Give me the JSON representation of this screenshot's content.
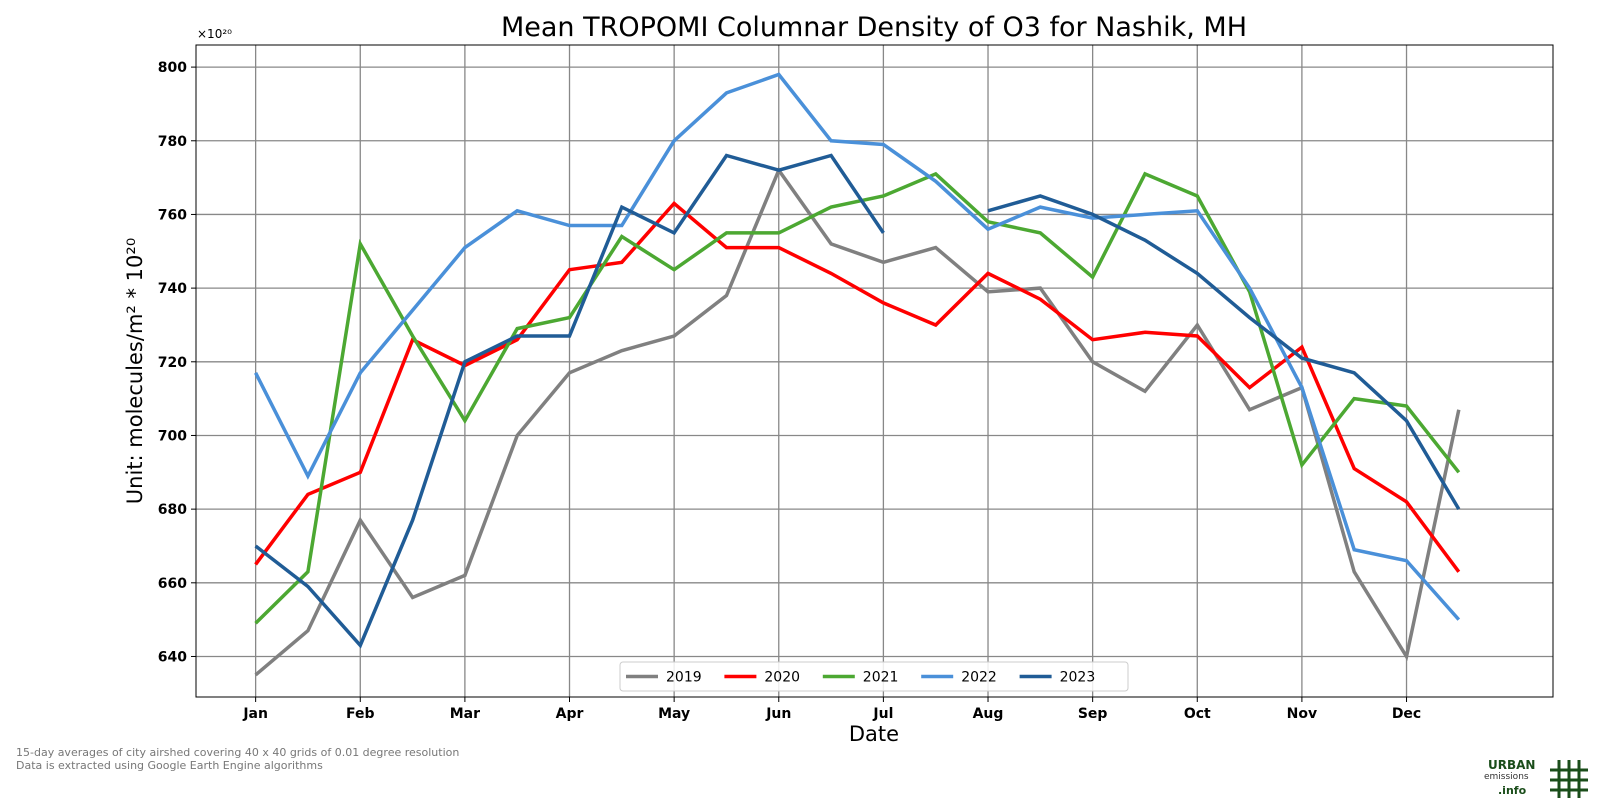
{
  "chart_data": {
    "type": "line",
    "title": "Mean TROPOMI Columnar Density of O3 for Nashik, MH",
    "xlabel": "Date",
    "ylabel": "Unit: molecules/m² * 10²⁰",
    "y_multiplier": "×10²⁰",
    "xticks": [
      "Jan",
      "Feb",
      "Mar",
      "Apr",
      "May",
      "Jun",
      "Jul",
      "Aug",
      "Sep",
      "Oct",
      "Nov",
      "Dec"
    ],
    "yticks": [
      640,
      660,
      680,
      700,
      720,
      740,
      760,
      780,
      800
    ],
    "ylim": [
      629,
      806
    ],
    "xlim": [
      -0.57,
      12.4
    ],
    "grid": true,
    "legend_position": "bottom-center",
    "series": [
      {
        "name": "2019",
        "color": "#808080",
        "x": [
          0,
          0.5,
          1,
          1.5,
          2,
          2.5,
          3,
          3.5,
          4,
          4.5,
          5,
          5.5,
          6,
          6.5,
          7,
          7.5,
          8,
          8.5,
          9,
          9.5,
          10,
          10.5,
          11,
          11.5
        ],
        "values": [
          635,
          647,
          677,
          656,
          662,
          700,
          717,
          723,
          727,
          738,
          772,
          752,
          747,
          751,
          739,
          740,
          720,
          712,
          730,
          707,
          713,
          663,
          640,
          707
        ]
      },
      {
        "name": "2020",
        "color": "#ff0000",
        "x": [
          0,
          0.5,
          1,
          1.5,
          2,
          2.5,
          3,
          3.5,
          4,
          4.5,
          5,
          5.5,
          6,
          6.5,
          7,
          7.5,
          8,
          8.5,
          9,
          9.5,
          10,
          10.5,
          11,
          11.5
        ],
        "values": [
          665,
          684,
          690,
          726,
          719,
          726,
          745,
          747,
          763,
          751,
          751,
          744,
          736,
          730,
          744,
          737,
          726,
          728,
          727,
          713,
          724,
          691,
          682,
          663
        ]
      },
      {
        "name": "2021",
        "color": "#4ca832",
        "x": [
          0,
          0.5,
          1,
          1.5,
          2,
          2.5,
          3,
          3.5,
          4,
          4.5,
          5,
          5.5,
          6,
          6.5,
          7,
          7.5,
          8,
          8.5,
          9,
          9.5,
          10,
          10.5,
          11,
          11.5
        ],
        "values": [
          649,
          663,
          752,
          727,
          704,
          729,
          732,
          754,
          745,
          755,
          755,
          762,
          765,
          771,
          758,
          755,
          743,
          771,
          765,
          739,
          692,
          710,
          708,
          690
        ]
      },
      {
        "name": "2022",
        "color": "#4a90d9",
        "x": [
          0,
          0.5,
          1,
          1.5,
          2,
          2.5,
          3,
          3.5,
          4,
          4.5,
          5,
          5.5,
          6,
          6.5,
          7,
          7.5,
          8,
          8.5,
          9,
          9.5,
          10,
          10.5,
          11,
          11.5
        ],
        "values": [
          717,
          689,
          717,
          734,
          751,
          761,
          757,
          757,
          780,
          793,
          798,
          780,
          779,
          769,
          756,
          762,
          759,
          760,
          761,
          740,
          713,
          669,
          666,
          650
        ]
      },
      {
        "name": "2023",
        "color": "#205c96",
        "x": [
          0,
          0.5,
          1,
          1.5,
          2,
          2.5,
          3,
          3.5,
          4,
          4.5,
          5,
          5.5,
          6,
          null,
          7,
          7.5,
          8,
          8.5,
          9,
          9.5,
          10,
          10.5,
          11,
          11.5
        ],
        "values": [
          670,
          659,
          643,
          677,
          720,
          727,
          727,
          762,
          755,
          776,
          772,
          776,
          755,
          null,
          761,
          765,
          760,
          753,
          744,
          732,
          721,
          717,
          704,
          680
        ]
      }
    ]
  },
  "footnotes": {
    "line1": "15-day averages of city airshed covering 40 x 40 grids of 0.01 degree resolution",
    "line2": "Data is extracted using Google Earth Engine algorithms"
  },
  "logo": {
    "line1": "URBAN",
    "line2": "emissions",
    "line3": ".info"
  }
}
